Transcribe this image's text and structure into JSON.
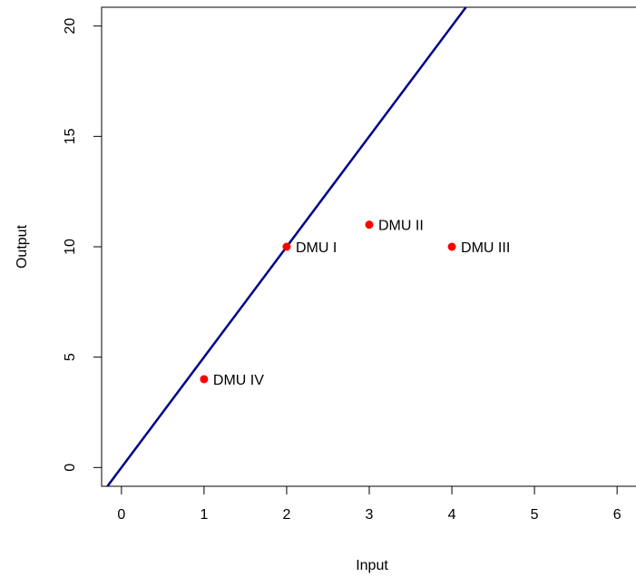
{
  "chart_data": {
    "type": "scatter",
    "title": "",
    "xlabel": "Input",
    "ylabel": "Output",
    "xlim": [
      -0.24,
      6.24
    ],
    "ylim": [
      -0.85,
      20.85
    ],
    "xticks": [
      0,
      1,
      2,
      3,
      4,
      5,
      6
    ],
    "yticks": [
      0,
      5,
      10,
      15,
      20
    ],
    "grid": false,
    "point_color": "#ff0000",
    "line_color": "#00008b",
    "points": [
      {
        "label": "DMU I",
        "x": 2,
        "y": 10
      },
      {
        "label": "DMU II",
        "x": 3,
        "y": 11
      },
      {
        "label": "DMU III",
        "x": 4,
        "y": 10
      },
      {
        "label": "DMU IV",
        "x": 1,
        "y": 4
      }
    ],
    "line": {
      "slope": 5,
      "intercept": 0
    }
  }
}
